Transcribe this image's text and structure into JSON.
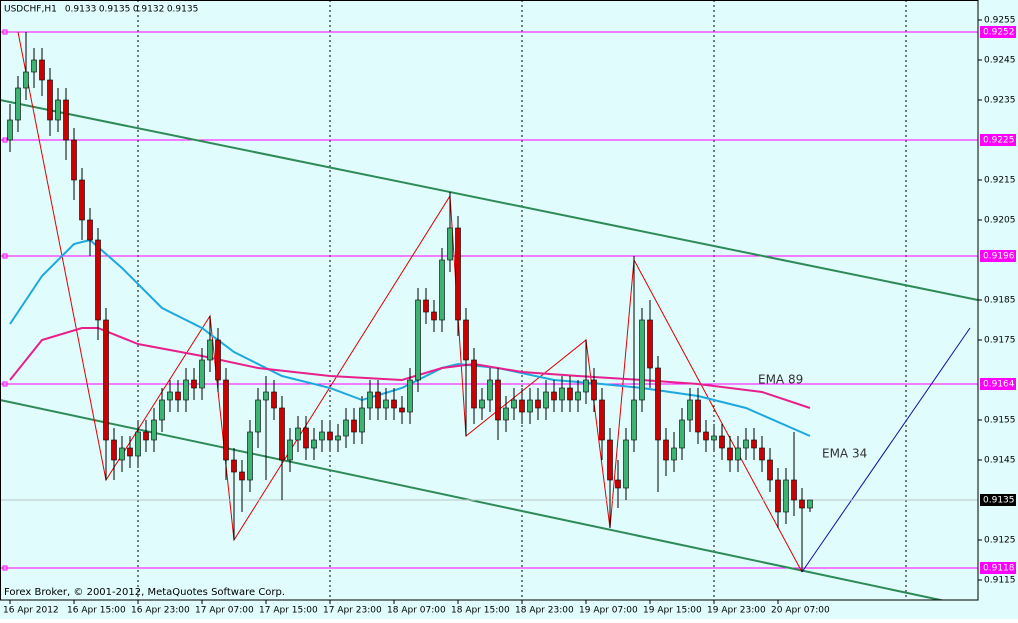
{
  "chart_data": {
    "type": "candlestick",
    "title": "USDCHF,H1",
    "credit": "Forex Broker, © 2001-2012, MetaQuotes Software Corp.",
    "xlim": [
      -1.25,
      121
    ],
    "ylim": [
      0.911,
      0.926
    ],
    "xticks": [
      {
        "value": 0,
        "label": "16 Apr 2012"
      },
      {
        "value": 8,
        "label": "16 Apr 15:00"
      },
      {
        "value": 16,
        "label": "16 Apr 23:00"
      },
      {
        "value": 24,
        "label": "17 Apr 07:00"
      },
      {
        "value": 32,
        "label": "17 Apr 15:00"
      },
      {
        "value": 40,
        "label": "17 Apr 23:00"
      },
      {
        "value": 48,
        "label": "18 Apr 07:00"
      },
      {
        "value": 56,
        "label": "18 Apr 15:00"
      },
      {
        "value": 64,
        "label": "18 Apr 23:00"
      },
      {
        "value": 72,
        "label": "19 Apr 07:00"
      },
      {
        "value": 80,
        "label": "19 Apr 15:00"
      },
      {
        "value": 88,
        "label": "19 Apr 23:00"
      },
      {
        "value": 96,
        "label": "20 Apr 07:00"
      }
    ],
    "xgrid": [
      16,
      40,
      64,
      88,
      112
    ],
    "yticks": [
      0.9255,
      0.9245,
      0.9235,
      0.9215,
      0.9205,
      0.9185,
      0.9175,
      0.9155,
      0.9145,
      0.9125,
      0.9115
    ],
    "levels": [
      0.9252,
      0.9225,
      0.9196,
      0.9164,
      0.9118
    ],
    "level_color": "#ff00ff",
    "bull_color": "#3cb371",
    "bear_color": "#cc0000",
    "open": [
      0.9225,
      0.923,
      0.9238,
      0.9242,
      0.9245,
      0.924,
      0.923,
      0.9235,
      0.9225,
      0.9215,
      0.9205,
      0.92,
      0.918,
      0.915,
      0.9145,
      0.9148,
      0.9146,
      0.9152,
      0.915,
      0.9155,
      0.916,
      0.9162,
      0.916,
      0.9165,
      0.9163,
      0.917,
      0.9175,
      0.9165,
      0.9145,
      0.9142,
      0.914,
      0.9152,
      0.916,
      0.9162,
      0.9158,
      0.9145,
      0.915,
      0.9153,
      0.9148,
      0.915,
      0.9152,
      0.915,
      0.9151,
      0.9155,
      0.9152,
      0.9158,
      0.9162,
      0.9158,
      0.916,
      0.9158,
      0.9157,
      0.9165,
      0.9185,
      0.9182,
      0.918,
      0.9195,
      0.9203,
      0.918,
      0.917,
      0.9158,
      0.916,
      0.9165,
      0.9155,
      0.9158,
      0.916,
      0.9157,
      0.916,
      0.9158,
      0.9162,
      0.916,
      0.9163,
      0.916,
      0.9162,
      0.9165,
      0.916,
      0.915,
      0.914,
      0.9138,
      0.915,
      0.916,
      0.918,
      0.9168,
      0.915,
      0.9145,
      0.9148,
      0.9155,
      0.916,
      0.9152,
      0.915,
      0.9151,
      0.9148,
      0.9145,
      0.9148,
      0.915,
      0.9148,
      0.9145,
      0.914,
      0.9132,
      0.914,
      0.9135,
      0.9133
    ],
    "high": [
      0.9234,
      0.9241,
      0.9252,
      0.9248,
      0.9248,
      0.9243,
      0.9238,
      0.9238,
      0.9228,
      0.9218,
      0.9208,
      0.9203,
      0.9183,
      0.9153,
      0.9151,
      0.9151,
      0.9155,
      0.9155,
      0.9158,
      0.9163,
      0.9165,
      0.9165,
      0.9168,
      0.9168,
      0.9173,
      0.9181,
      0.9178,
      0.9168,
      0.9148,
      0.9145,
      0.9155,
      0.9163,
      0.9166,
      0.9165,
      0.9161,
      0.9153,
      0.9156,
      0.9156,
      0.9153,
      0.9155,
      0.9155,
      0.9154,
      0.9158,
      0.9158,
      0.9161,
      0.9165,
      0.9165,
      0.9163,
      0.9163,
      0.9161,
      0.9168,
      0.9188,
      0.9188,
      0.9185,
      0.9198,
      0.9212,
      0.9206,
      0.9183,
      0.9173,
      0.9163,
      0.9168,
      0.9168,
      0.9161,
      0.9163,
      0.9163,
      0.9163,
      0.9163,
      0.9165,
      0.9165,
      0.9166,
      0.9166,
      0.9165,
      0.9175,
      0.9168,
      0.9163,
      0.9153,
      0.9145,
      0.9153,
      0.9196,
      0.9183,
      0.9185,
      0.9171,
      0.9153,
      0.9152,
      0.9158,
      0.9163,
      0.9163,
      0.9155,
      0.9154,
      0.9154,
      0.9151,
      0.9151,
      0.9153,
      0.9153,
      0.9151,
      0.9148,
      0.9143,
      0.9143,
      0.9152,
      0.9138,
      0.9135
    ],
    "low": [
      0.9222,
      0.9227,
      0.9235,
      0.9238,
      0.9236,
      0.9226,
      0.9227,
      0.922,
      0.921,
      0.92,
      0.9196,
      0.9175,
      0.914,
      0.914,
      0.9142,
      0.9143,
      0.9143,
      0.9147,
      0.9147,
      0.9152,
      0.9157,
      0.9157,
      0.9157,
      0.916,
      0.916,
      0.9167,
      0.9162,
      0.914,
      0.9125,
      0.9132,
      0.9137,
      0.9148,
      0.914,
      0.9155,
      0.9135,
      0.9142,
      0.9147,
      0.9145,
      0.9145,
      0.9147,
      0.9147,
      0.9147,
      0.9148,
      0.9149,
      0.9149,
      0.9155,
      0.9155,
      0.9155,
      0.9155,
      0.9154,
      0.9154,
      0.9162,
      0.9179,
      0.9177,
      0.9177,
      0.9192,
      0.9176,
      0.9151,
      0.9154,
      0.9155,
      0.9157,
      0.915,
      0.9152,
      0.9155,
      0.9154,
      0.9154,
      0.9155,
      0.9155,
      0.9157,
      0.9157,
      0.9157,
      0.9157,
      0.9159,
      0.9157,
      0.9145,
      0.9128,
      0.9133,
      0.9135,
      0.9147,
      0.9157,
      0.9163,
      0.9137,
      0.9141,
      0.9142,
      0.9145,
      0.9152,
      0.9149,
      0.9147,
      0.9147,
      0.9145,
      0.9142,
      0.9142,
      0.9145,
      0.9145,
      0.9142,
      0.9137,
      0.9128,
      0.9129,
      0.9131,
      0.9117,
      0.9132
    ],
    "close": [
      0.923,
      0.9238,
      0.9242,
      0.9245,
      0.924,
      0.923,
      0.9235,
      0.9225,
      0.9215,
      0.9205,
      0.92,
      0.918,
      0.915,
      0.9145,
      0.9148,
      0.9146,
      0.9152,
      0.915,
      0.9155,
      0.916,
      0.9162,
      0.916,
      0.9165,
      0.9163,
      0.917,
      0.9175,
      0.9165,
      0.9145,
      0.9142,
      0.914,
      0.9152,
      0.916,
      0.9162,
      0.9158,
      0.9145,
      0.915,
      0.9153,
      0.9148,
      0.915,
      0.9152,
      0.915,
      0.9151,
      0.9155,
      0.9152,
      0.9158,
      0.9162,
      0.9158,
      0.916,
      0.9158,
      0.9157,
      0.9165,
      0.9185,
      0.9182,
      0.918,
      0.9195,
      0.9203,
      0.918,
      0.917,
      0.9158,
      0.916,
      0.9165,
      0.9155,
      0.9158,
      0.916,
      0.9157,
      0.916,
      0.9158,
      0.9162,
      0.916,
      0.9163,
      0.916,
      0.9162,
      0.9165,
      0.916,
      0.915,
      0.914,
      0.9138,
      0.915,
      0.916,
      0.918,
      0.9168,
      0.915,
      0.9145,
      0.9148,
      0.9155,
      0.916,
      0.9152,
      0.915,
      0.9151,
      0.9148,
      0.9145,
      0.9148,
      0.915,
      0.9148,
      0.9145,
      0.914,
      0.9132,
      0.914,
      0.9135,
      0.9133,
      0.9135
    ],
    "indicators": [
      {
        "name": "EMA 34",
        "color": "#1ea8e0",
        "x": [
          0,
          4,
          8,
          10,
          14,
          19,
          24,
          28,
          34,
          40,
          44,
          49,
          54,
          56,
          61,
          68,
          74,
          79,
          86,
          92,
          100
        ],
        "values": [
          0.9179,
          0.9191,
          0.9199,
          0.92,
          0.9193,
          0.9183,
          0.9178,
          0.9172,
          0.9166,
          0.9163,
          0.916,
          0.9163,
          0.9168,
          0.9169,
          0.9168,
          0.9165,
          0.9164,
          0.9163,
          0.9161,
          0.9158,
          0.9151
        ]
      },
      {
        "name": "EMA 89",
        "color": "#e8208c",
        "x": [
          0,
          4,
          9,
          11,
          16,
          24,
          31,
          40,
          49,
          54,
          58,
          64,
          71,
          79,
          86,
          94,
          100
        ],
        "values": [
          0.9165,
          0.9175,
          0.9178,
          0.9178,
          0.9174,
          0.9171,
          0.9168,
          0.9166,
          0.9165,
          0.9168,
          0.9169,
          0.9167,
          0.9166,
          0.9165,
          0.9164,
          0.9162,
          0.9158
        ]
      }
    ],
    "trendlines": [
      {
        "color": "#2e8b57",
        "x": [
          -1.25,
          121
        ],
        "values": [
          0.9235,
          0.9185
        ]
      },
      {
        "color": "#2e8b57",
        "x": [
          -1.25,
          121
        ],
        "values": [
          0.916,
          0.9108
        ]
      },
      {
        "color": "#e00000",
        "x": [
          1,
          12,
          25,
          28,
          55,
          57,
          72,
          75,
          78,
          99
        ],
        "values": [
          0.9252,
          0.914,
          0.9181,
          0.9125,
          0.9211,
          0.9151,
          0.9175,
          0.9128,
          0.9195,
          0.9117
        ]
      },
      {
        "color": "#1010a0",
        "x": [
          99,
          120
        ],
        "values": [
          0.9117,
          0.9178
        ]
      }
    ]
  }
}
